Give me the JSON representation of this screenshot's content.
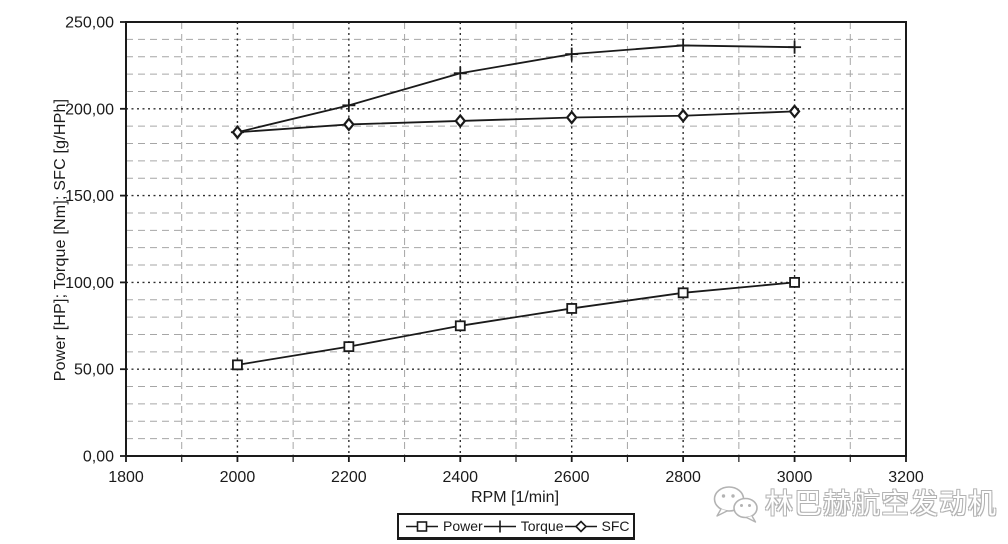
{
  "chart_data": {
    "type": "line",
    "title": "",
    "xlabel": "RPM [1/min]",
    "ylabel": "Power [HP]; Torque [Nm]; SFC [g/HPh]",
    "xlim": [
      1800,
      3200
    ],
    "ylim": [
      0,
      250
    ],
    "x_major_ticks": [
      1800,
      2000,
      2200,
      2400,
      2600,
      2800,
      3000,
      3200
    ],
    "x_tick_labels": [
      "1800",
      "2000",
      "2200",
      "2400",
      "2600",
      "2800",
      "3000",
      "3200"
    ],
    "x_minor_step": 100,
    "y_major_ticks": [
      0,
      50,
      100,
      150,
      200,
      250
    ],
    "y_tick_labels": [
      "0,00",
      "50,00",
      "100,00",
      "150,00",
      "200,00",
      "250,00"
    ],
    "y_minor_step": 10,
    "grid": {
      "minor": "dashed-gray",
      "major": "dotted-dark",
      "frame": "solid"
    },
    "legend_position": "bottom-center",
    "x": [
      2000,
      2200,
      2400,
      2600,
      2800,
      3000
    ],
    "series": [
      {
        "name": "Power",
        "marker": "square",
        "values": [
          52.5,
          63,
          75,
          85,
          94,
          100
        ]
      },
      {
        "name": "Torque",
        "marker": "plus",
        "values": [
          186.5,
          202,
          220.5,
          231.5,
          236.5,
          235.5
        ]
      },
      {
        "name": "SFC",
        "marker": "diamond",
        "values": [
          186.5,
          191,
          193,
          195,
          196,
          198.5
        ]
      }
    ]
  },
  "watermark": {
    "text": "林巴赫航空发动机",
    "icon": "wechat-icon"
  },
  "colors": {
    "line": "#1a1a1a",
    "grid_minor": "#a6a6a6",
    "grid_major": "#2e2e2e",
    "watermark": "#b3b3b3"
  }
}
